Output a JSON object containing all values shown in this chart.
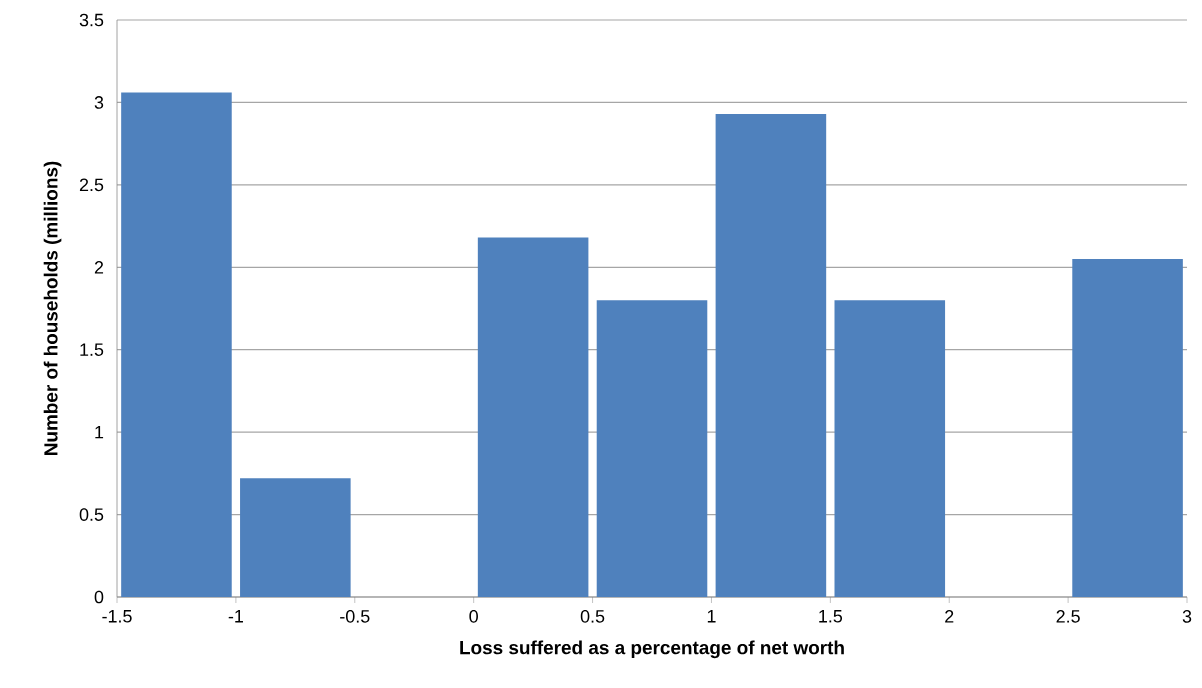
{
  "chart_data": {
    "type": "histogram",
    "xlabel": "Loss suffered as a percentage of net worth",
    "ylabel": "Number of households (millions)",
    "bins": [
      -1.5,
      -1,
      -0.5,
      0,
      0.5,
      1,
      1.5,
      2,
      2.5,
      3
    ],
    "values": [
      3.06,
      0.72,
      0,
      2.18,
      1.8,
      2.93,
      1.8,
      0,
      2.05
    ],
    "color": "#4f81bd",
    "xlim": [
      -1.5,
      3
    ],
    "xticks": [
      -1.5,
      -1,
      -0.5,
      0,
      0.5,
      1,
      1.5,
      2,
      2.5,
      3
    ],
    "ylim": [
      0,
      3.5
    ],
    "yticks": [
      0,
      0.5,
      1,
      1.5,
      2,
      2.5,
      3,
      3.5
    ],
    "grid": "y"
  }
}
